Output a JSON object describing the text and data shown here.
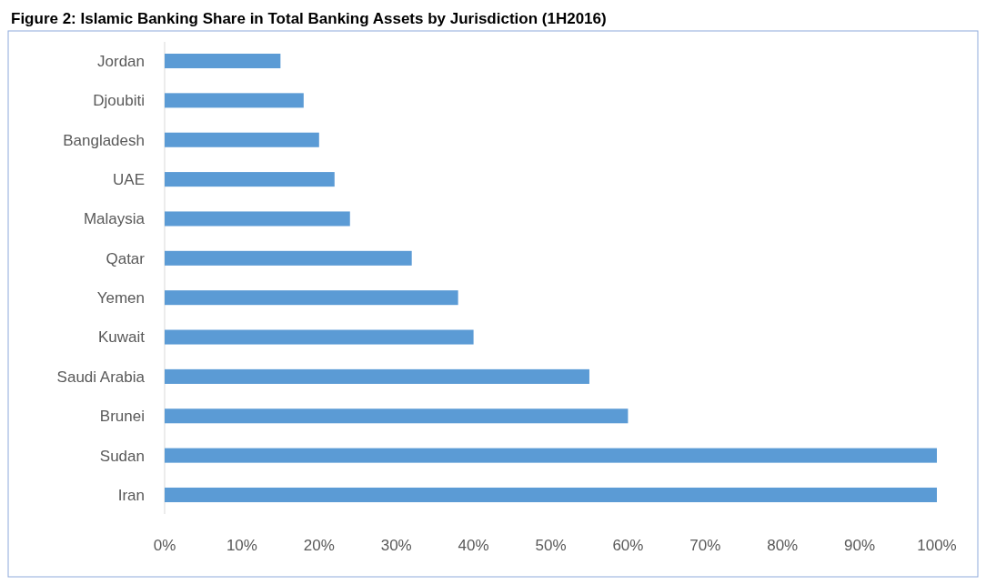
{
  "chart_data": {
    "type": "bar",
    "orientation": "horizontal",
    "title": "Figure 2: Islamic Banking Share in Total Banking Assets by Jurisdiction (1H2016)",
    "categories": [
      "Jordan",
      "Djoubiti",
      "Bangladesh",
      "UAE",
      "Malaysia",
      "Qatar",
      "Yemen",
      "Kuwait",
      "Saudi Arabia",
      "Brunei",
      "Sudan",
      "Iran"
    ],
    "values": [
      15,
      18,
      20,
      22,
      24,
      32,
      38,
      40,
      55,
      60,
      100,
      100
    ],
    "color": "#5b9bd5",
    "xlim": [
      0,
      100
    ],
    "xticks": [
      {
        "value": 0,
        "label": "0%"
      },
      {
        "value": 10,
        "label": "10%"
      },
      {
        "value": 20,
        "label": "20%"
      },
      {
        "value": 30,
        "label": "30%"
      },
      {
        "value": 40,
        "label": "40%"
      },
      {
        "value": 50,
        "label": "50%"
      },
      {
        "value": 60,
        "label": "60%"
      },
      {
        "value": 70,
        "label": "70%"
      },
      {
        "value": 80,
        "label": "80%"
      },
      {
        "value": 90,
        "label": "90%"
      },
      {
        "value": 100,
        "label": "100%"
      }
    ],
    "grid": false
  }
}
